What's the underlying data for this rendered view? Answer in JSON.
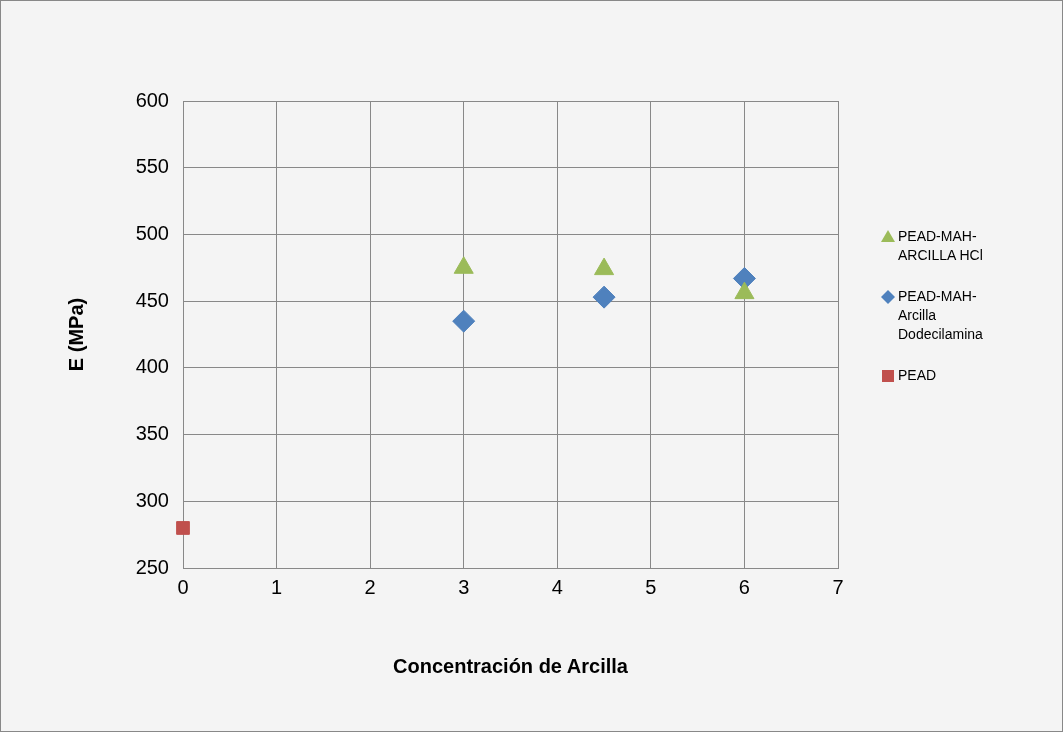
{
  "chart_data": {
    "type": "scatter",
    "xlabel": "Concentración de Arcilla",
    "ylabel": "E (MPa)",
    "xlim": [
      0,
      7
    ],
    "xticks": [
      0,
      1,
      2,
      3,
      4,
      5,
      6,
      7
    ],
    "ylim": [
      250,
      600
    ],
    "yticks": [
      250,
      300,
      350,
      400,
      450,
      500,
      550,
      600
    ],
    "grid": true,
    "legend": "right",
    "series": [
      {
        "name": "PEAD-MAH-ARCILLA HCl",
        "color": "#9bbb59",
        "marker": "triangle",
        "x": [
          3,
          4.5,
          6
        ],
        "values": [
          475,
          474,
          456
        ]
      },
      {
        "name": "PEAD-MAH-Arcilla Dodecilamina",
        "color": "#4f81bd",
        "marker": "diamond",
        "x": [
          3,
          4.5,
          6
        ],
        "values": [
          435,
          453,
          467
        ]
      },
      {
        "name": "PEAD",
        "color": "#c0504d",
        "marker": "square",
        "x": [
          0
        ],
        "values": [
          280
        ]
      }
    ]
  }
}
